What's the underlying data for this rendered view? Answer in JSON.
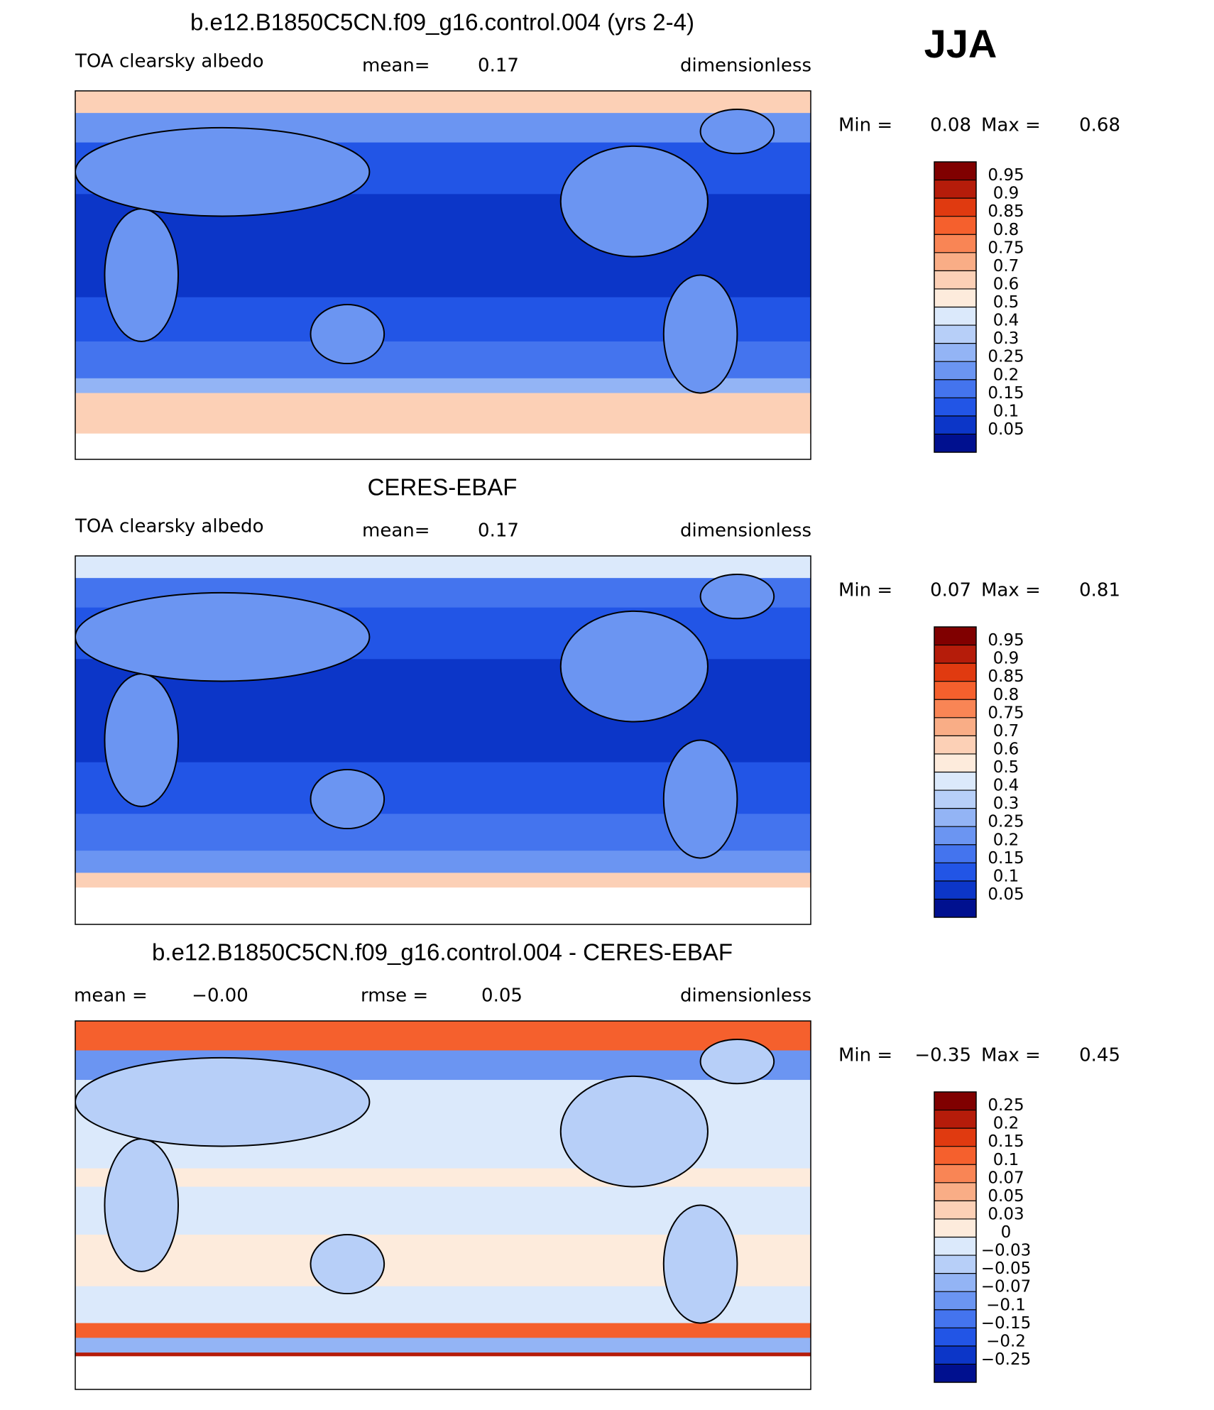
{
  "season": "JJA",
  "panels": [
    {
      "title": "b.e12.B1850C5CN.f09_g16.control.004 (yrs 2-4)",
      "field": "TOA clearsky albedo",
      "stats": [
        {
          "label": "mean=",
          "value": 0.17
        }
      ],
      "units": "dimensionless",
      "min_label": "Min =",
      "min": 0.08,
      "max_label": "Max =",
      "max": 0.68,
      "colorbar": {
        "levels": [
          0.95,
          0.9,
          0.85,
          0.8,
          0.75,
          0.7,
          0.6,
          0.5,
          0.4,
          0.3,
          0.25,
          0.2,
          0.15,
          0.1,
          0.05
        ],
        "colors": [
          "#800000",
          "#b51c0a",
          "#e03a10",
          "#f5602d",
          "#f98555",
          "#f9ad86",
          "#fcd0b6",
          "#fdebdc",
          "#dbe9fb",
          "#b7cff8",
          "#93b4f5",
          "#6b95f2",
          "#4474ee",
          "#2255e6",
          "#0c36c8",
          "#00108f"
        ]
      }
    },
    {
      "title": "CERES-EBAF",
      "field": "TOA clearsky albedo",
      "stats": [
        {
          "label": "mean=",
          "value": 0.17
        }
      ],
      "units": "dimensionless",
      "min_label": "Min =",
      "min": 0.07,
      "max_label": "Max =",
      "max": 0.81,
      "colorbar": {
        "levels": [
          0.95,
          0.9,
          0.85,
          0.8,
          0.75,
          0.7,
          0.6,
          0.5,
          0.4,
          0.3,
          0.25,
          0.2,
          0.15,
          0.1,
          0.05
        ],
        "colors": [
          "#800000",
          "#b51c0a",
          "#e03a10",
          "#f5602d",
          "#f98555",
          "#f9ad86",
          "#fcd0b6",
          "#fdebdc",
          "#dbe9fb",
          "#b7cff8",
          "#93b4f5",
          "#6b95f2",
          "#4474ee",
          "#2255e6",
          "#0c36c8",
          "#00108f"
        ]
      }
    },
    {
      "title": "b.e12.B1850C5CN.f09_g16.control.004 - CERES-EBAF",
      "stats": [
        {
          "label": "mean =",
          "value": {
            "value": 0,
            "label": "−0.00"
          }
        },
        {
          "label": "rmse =",
          "value": 0.05
        }
      ],
      "units": "dimensionless",
      "min_label": "Min =",
      "min": {
        "value": -0.35,
        "label": "−0.35"
      },
      "max_label": "Max =",
      "max": 0.45,
      "colorbar": {
        "levels": [
          0.25,
          0.2,
          0.15,
          0.1,
          0.07,
          0.05,
          0.03,
          0,
          {
            "value": -0.03,
            "label": "−0.03"
          },
          {
            "value": -0.05,
            "label": "−0.05"
          },
          {
            "value": -0.07,
            "label": "−0.07"
          },
          {
            "value": -0.1,
            "label": "−0.1"
          },
          {
            "value": -0.15,
            "label": "−0.15"
          },
          {
            "value": -0.2,
            "label": "−0.2"
          },
          {
            "value": -0.25,
            "label": "−0.25"
          }
        ],
        "colors": [
          "#800000",
          "#b51c0a",
          "#e03a10",
          "#f5602d",
          "#f98555",
          "#f9ad86",
          "#fcd0b6",
          "#fdebdc",
          "#dbe9fb",
          "#b7cff8",
          "#93b4f5",
          "#6b95f2",
          "#4474ee",
          "#2255e6",
          "#0c36c8",
          "#00108f"
        ]
      }
    }
  ]
}
